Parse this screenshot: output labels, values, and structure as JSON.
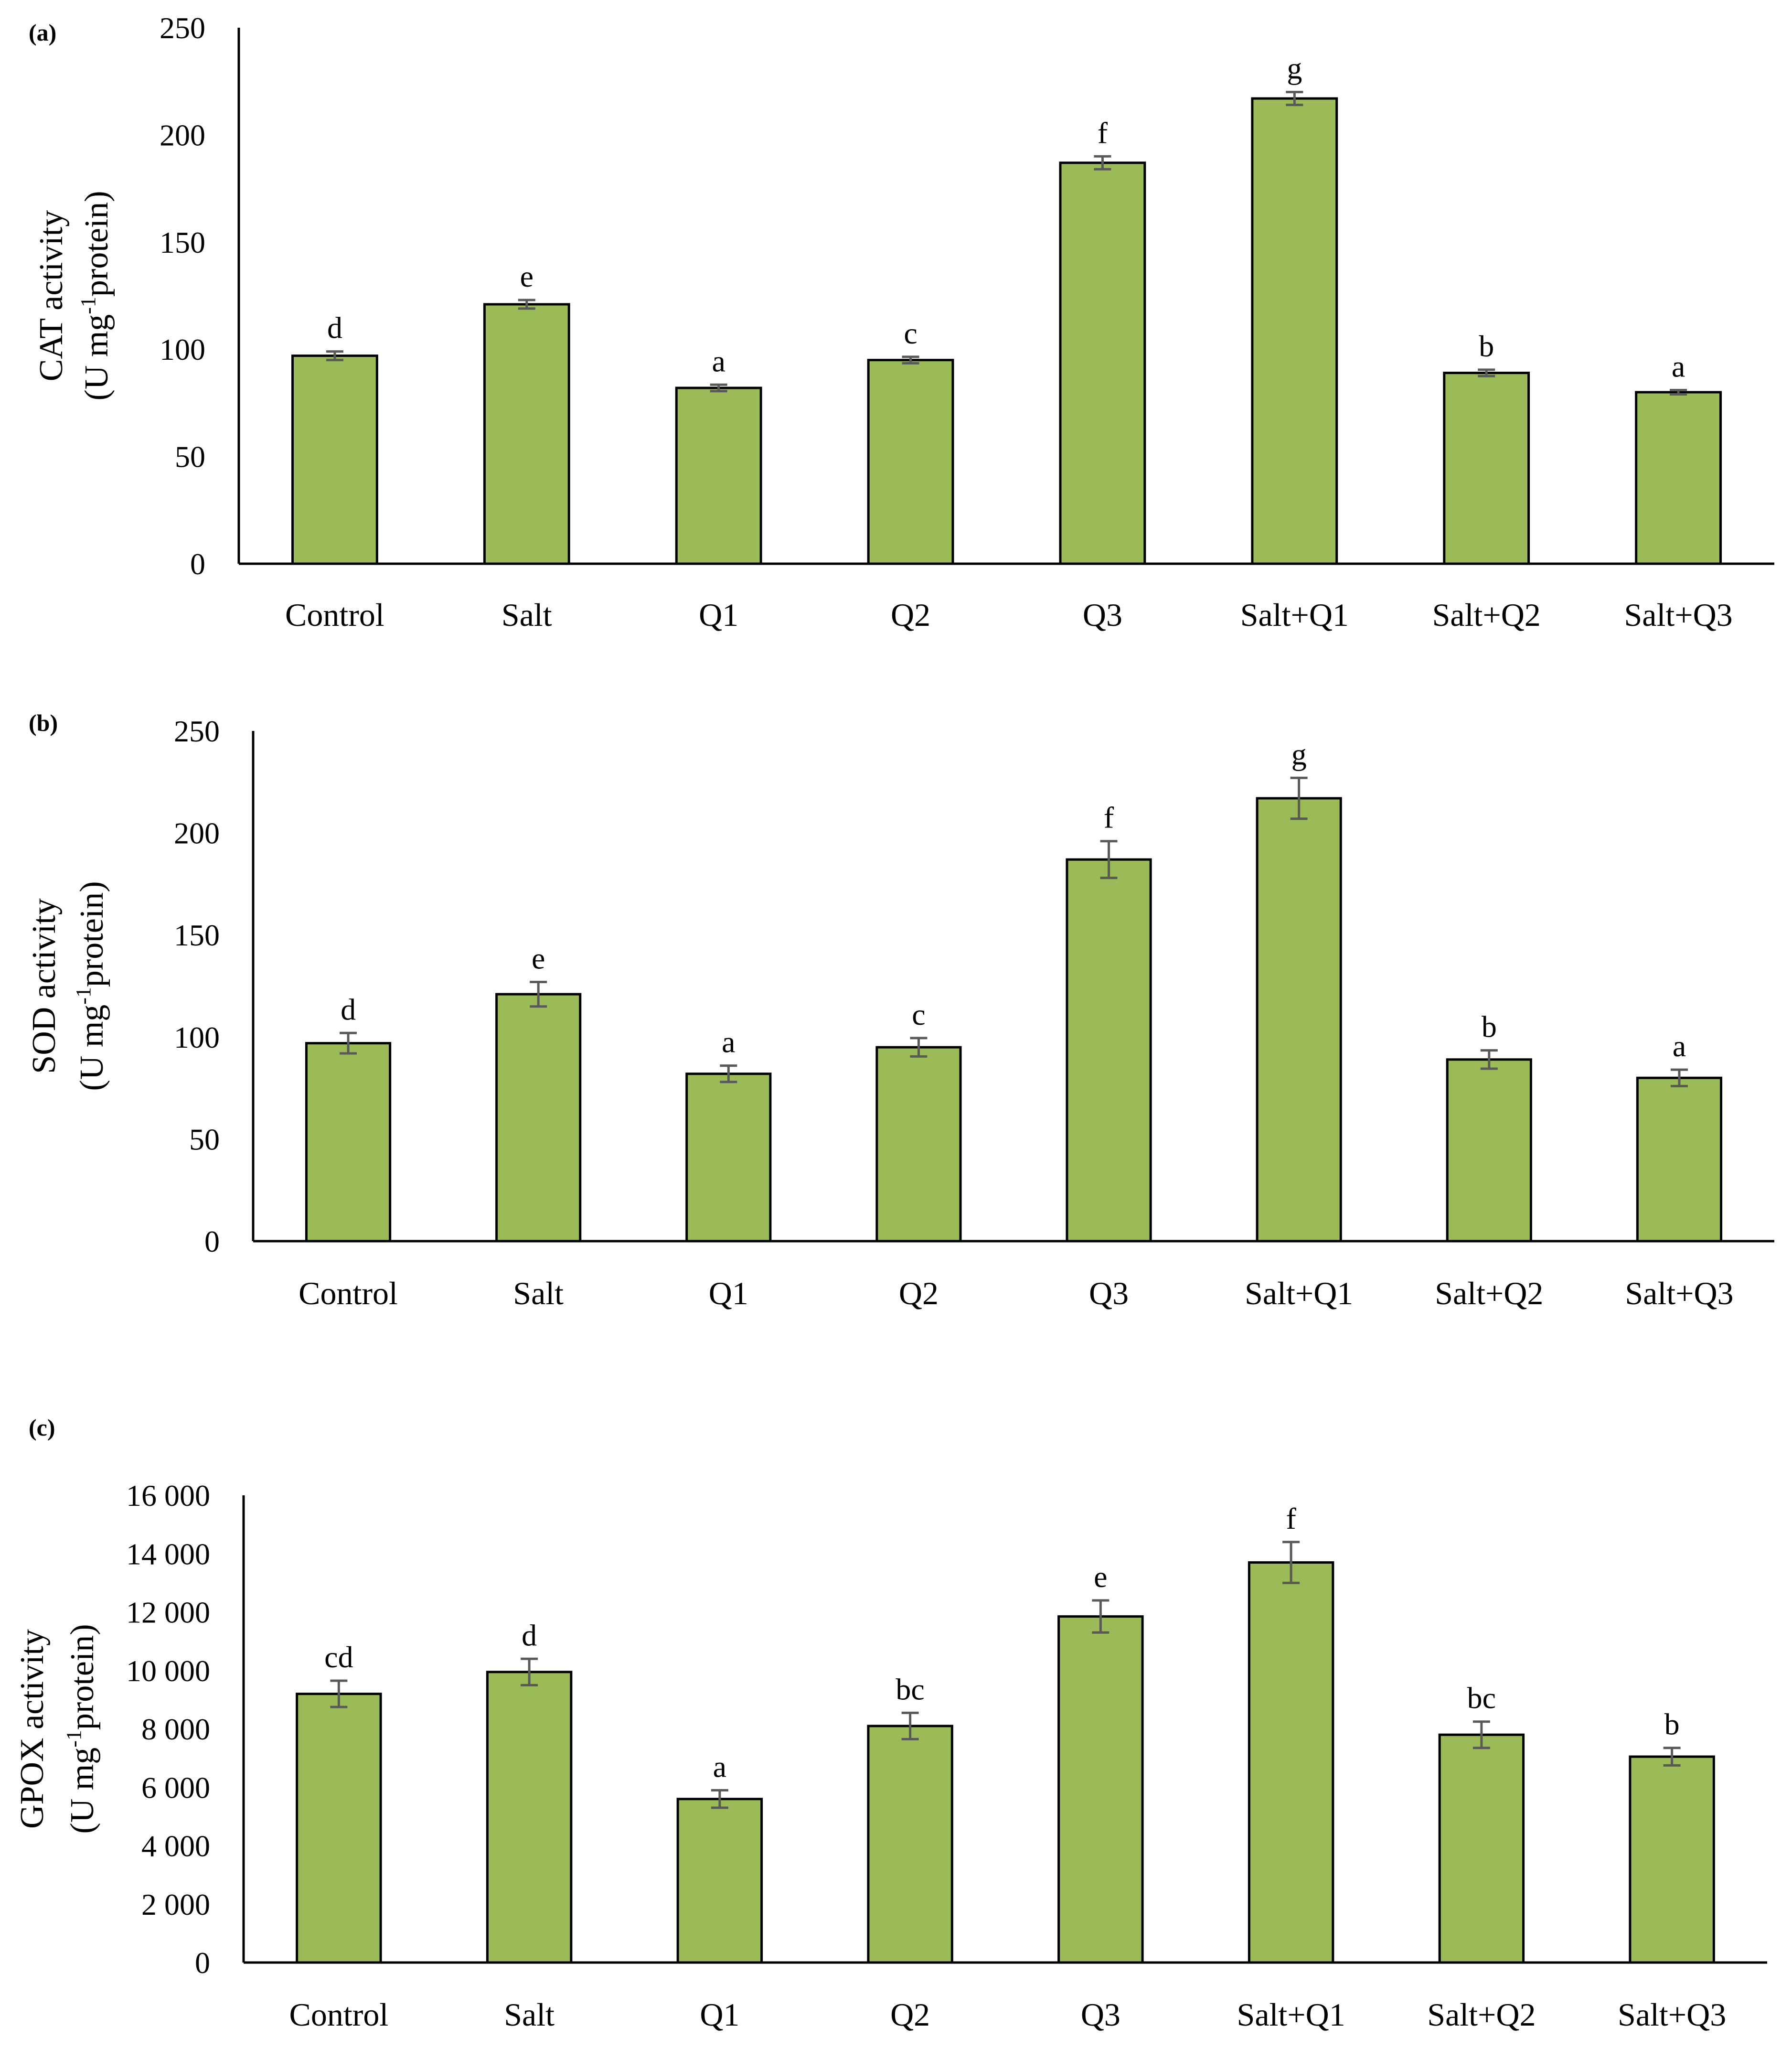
{
  "colors": {
    "bar_fill": "#9bbb59",
    "bar_stroke": "#000000",
    "axis": "#000000",
    "error_bar": "#595959"
  },
  "chart_data": [
    {
      "type": "bar",
      "panel": "(a)",
      "categories": [
        "Control",
        "Salt",
        "Q1",
        "Q2",
        "Q3",
        "Salt+Q1",
        "Salt+Q2",
        "Salt+Q3"
      ],
      "values": [
        97,
        121,
        82,
        95,
        187,
        217,
        89,
        80
      ],
      "errors": [
        2,
        2,
        1.5,
        1.5,
        3,
        3,
        1.5,
        1
      ],
      "letters": [
        "d",
        "e",
        "a",
        "c",
        "f",
        "g",
        "b",
        "a"
      ],
      "ylabel_line1": "CAT activity",
      "ylabel_line2_pre": "(U mg",
      "ylabel_line2_sup": "-1",
      "ylabel_line2_post": "protein)",
      "ylim": [
        0,
        250
      ],
      "yticks": [
        0,
        50,
        100,
        150,
        200,
        250
      ],
      "ytick_labels": [
        "0",
        "50",
        "100",
        "150",
        "200",
        "250"
      ],
      "grid": false
    },
    {
      "type": "bar",
      "panel": "(b)",
      "categories": [
        "Control",
        "Salt",
        "Q1",
        "Q2",
        "Q3",
        "Salt+Q1",
        "Salt+Q2",
        "Salt+Q3"
      ],
      "values": [
        97,
        121,
        82,
        95,
        187,
        217,
        89,
        80
      ],
      "errors": [
        5,
        6,
        4,
        4.5,
        9,
        10,
        4.5,
        4
      ],
      "letters": [
        "d",
        "e",
        "a",
        "c",
        "f",
        "g",
        "b",
        "a"
      ],
      "ylabel_line1": "SOD activity",
      "ylabel_line2_pre": "(U mg",
      "ylabel_line2_sup": "-1",
      "ylabel_line2_post": "protein)",
      "ylim": [
        0,
        250
      ],
      "yticks": [
        0,
        50,
        100,
        150,
        200,
        250
      ],
      "ytick_labels": [
        "0",
        "50",
        "100",
        "150",
        "200",
        "250"
      ],
      "grid": false
    },
    {
      "type": "bar",
      "panel": "(c)",
      "categories": [
        "Control",
        "Salt",
        "Q1",
        "Q2",
        "Q3",
        "Salt+Q1",
        "Salt+Q2",
        "Salt+Q3"
      ],
      "values": [
        9200,
        9950,
        5600,
        8100,
        11850,
        13700,
        7800,
        7050
      ],
      "errors": [
        450,
        450,
        300,
        450,
        550,
        700,
        450,
        300
      ],
      "letters": [
        "cd",
        "d",
        "a",
        "bc",
        "e",
        "f",
        "bc",
        "b"
      ],
      "ylabel_line1": "GPOX activity",
      "ylabel_line2_pre": "(U mg",
      "ylabel_line2_sup": "-1",
      "ylabel_line2_post": "protein)",
      "ylim": [
        0,
        16000
      ],
      "yticks": [
        0,
        2000,
        4000,
        6000,
        8000,
        10000,
        12000,
        14000,
        16000
      ],
      "ytick_labels": [
        "0",
        "2 000",
        "4 000",
        "6 000",
        "8 000",
        "10 000",
        "12 000",
        "14 000",
        "16 000"
      ],
      "grid": false
    }
  ]
}
